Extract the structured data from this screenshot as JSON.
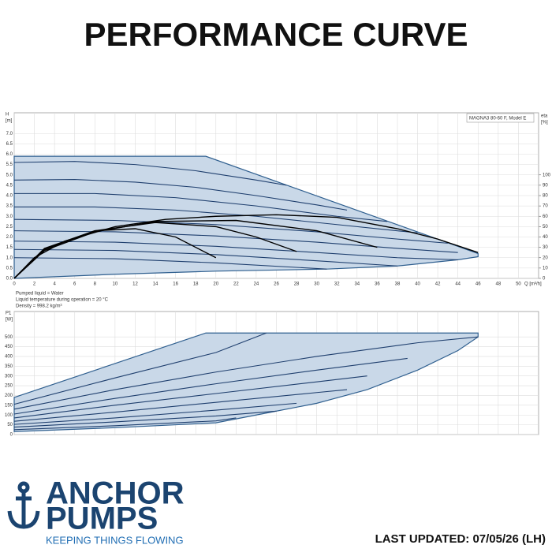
{
  "title": "PERFORMANCE CURVE",
  "chart_data": [
    {
      "type": "line",
      "model": "MAGNA3 80-60 F, Model E",
      "y_label": "H",
      "y_unit": "[m]",
      "y2_label": "eta",
      "y2_unit": "[%]",
      "x_label": "Q [m³/h]",
      "notes": [
        "Pumped liquid = Water",
        "Liquid temperature during operation = 20 °C",
        "Density = 998.2 kg/m³"
      ],
      "xlim": [
        0,
        52
      ],
      "ylim": [
        0,
        8
      ],
      "y2lim": [
        0,
        160
      ],
      "grid": true,
      "xticks": [
        0,
        2,
        4,
        6,
        8,
        10,
        12,
        14,
        16,
        18,
        20,
        22,
        24,
        26,
        28,
        30,
        32,
        34,
        36,
        38,
        40,
        42,
        44,
        46,
        48,
        50
      ],
      "yticks": [
        {
          "value": 0,
          "label": "0.0"
        },
        0.5,
        {
          "value": 1,
          "label": "1.0"
        },
        1.5,
        {
          "value": 2,
          "label": "2.0"
        },
        2.5,
        {
          "value": 3,
          "label": "3.0"
        },
        3.5,
        {
          "value": 4,
          "label": "4.0"
        },
        4.5,
        {
          "value": 5,
          "label": "5.0"
        },
        5.5,
        {
          "value": 6,
          "label": "6.0"
        },
        6.5,
        {
          "value": 7,
          "label": "7.0"
        }
      ],
      "y2ticks": [
        0,
        10,
        20,
        30,
        40,
        50,
        60,
        70,
        80,
        90,
        100
      ],
      "area": {
        "color": "#2f5f8f",
        "fill": "#c9d8e8",
        "x": [
          0,
          19,
          46,
          46,
          44,
          38,
          31,
          20,
          10,
          0
        ],
        "values": [
          5.9,
          5.9,
          1.2,
          1.05,
          0.9,
          0.6,
          0.45,
          0.35,
          0.2,
          0
        ]
      },
      "series": [
        {
          "color": "#1f3f6e",
          "x": [
            0,
            6,
            12,
            18,
            24,
            27
          ],
          "values": [
            5.6,
            5.65,
            5.5,
            5.2,
            4.75,
            4.5
          ]
        },
        {
          "color": "#1f3f6e",
          "x": [
            0,
            6,
            12,
            18,
            24,
            30,
            33
          ],
          "values": [
            4.75,
            4.78,
            4.65,
            4.4,
            4.0,
            3.55,
            3.3
          ]
        },
        {
          "color": "#1f3f6e",
          "x": [
            0,
            8,
            16,
            24,
            32,
            37
          ],
          "values": [
            4.1,
            4.1,
            3.9,
            3.5,
            3.0,
            2.75
          ]
        },
        {
          "color": "#1f3f6e",
          "x": [
            0,
            8,
            16,
            24,
            32,
            40
          ],
          "values": [
            3.45,
            3.45,
            3.3,
            3.0,
            2.6,
            2.2
          ]
        },
        {
          "color": "#1f3f6e",
          "x": [
            0,
            10,
            20,
            30,
            38,
            43
          ],
          "values": [
            2.85,
            2.8,
            2.6,
            2.25,
            1.9,
            1.7
          ]
        },
        {
          "color": "#1f3f6e",
          "x": [
            0,
            10,
            20,
            30,
            38,
            44
          ],
          "values": [
            2.3,
            2.25,
            2.05,
            1.75,
            1.45,
            1.25
          ]
        },
        {
          "color": "#1f3f6e",
          "x": [
            0,
            10,
            20,
            30,
            38,
            44
          ],
          "values": [
            1.8,
            1.75,
            1.55,
            1.25,
            1.0,
            0.9
          ]
        },
        {
          "color": "#1f3f6e",
          "x": [
            0,
            10,
            20,
            30,
            38
          ],
          "values": [
            1.4,
            1.35,
            1.15,
            0.85,
            0.6
          ]
        },
        {
          "color": "#1f3f6e",
          "x": [
            0,
            10,
            20,
            31
          ],
          "values": [
            1.0,
            0.95,
            0.75,
            0.45
          ]
        },
        {
          "color": "#000000",
          "axis": "y2",
          "x": [
            0,
            3,
            8,
            12,
            16,
            20
          ],
          "values": [
            0,
            29,
            46,
            48,
            40,
            20
          ]
        },
        {
          "color": "#000000",
          "axis": "y2",
          "x": [
            0,
            3,
            8,
            14,
            20,
            24,
            28
          ],
          "values": [
            0,
            28,
            46,
            54,
            50,
            40,
            26
          ]
        },
        {
          "color": "#000000",
          "axis": "y2",
          "x": [
            0,
            3,
            8,
            14,
            22,
            30,
            36
          ],
          "values": [
            0,
            27,
            45,
            55,
            56,
            46,
            30
          ]
        },
        {
          "color": "#000000",
          "axis": "y2",
          "x": [
            0,
            2,
            5,
            10,
            15,
            20,
            26,
            32,
            38,
            42,
            46
          ],
          "values": [
            0,
            20,
            36,
            50,
            57,
            60,
            61.5,
            59,
            48,
            38,
            25
          ]
        }
      ]
    },
    {
      "type": "line",
      "y_label": "P1",
      "y_unit": "[W]",
      "xlim": [
        0,
        52
      ],
      "ylim": [
        0,
        630
      ],
      "grid": true,
      "xticks": [
        0,
        2,
        4,
        6,
        8,
        10,
        12,
        14,
        16,
        18,
        20,
        22,
        24,
        26,
        28,
        30,
        32,
        34,
        36,
        38,
        40,
        42,
        44,
        46,
        48,
        50
      ],
      "yticks": [
        0,
        50,
        100,
        150,
        200,
        250,
        300,
        350,
        400,
        450,
        500
      ],
      "area": {
        "color": "#2f5f8f",
        "fill": "#c9d8e8",
        "x": [
          0,
          19,
          46,
          46,
          44,
          40,
          35,
          30,
          25,
          20,
          10,
          0
        ],
        "values": [
          190,
          520,
          520,
          500,
          430,
          330,
          230,
          160,
          110,
          60,
          35,
          15
        ]
      },
      "series": [
        {
          "color": "#1f3f6e",
          "x": [
            0,
            10,
            20,
            25
          ],
          "values": [
            155,
            290,
            420,
            520
          ]
        },
        {
          "color": "#1f3f6e",
          "x": [
            0,
            10,
            20,
            30,
            40,
            46
          ],
          "values": [
            130,
            230,
            320,
            400,
            470,
            500
          ]
        },
        {
          "color": "#1f3f6e",
          "x": [
            0,
            10,
            20,
            30,
            39
          ],
          "values": [
            105,
            185,
            260,
            330,
            390
          ]
        },
        {
          "color": "#1f3f6e",
          "x": [
            0,
            10,
            20,
            30,
            35
          ],
          "values": [
            85,
            150,
            210,
            270,
            300
          ]
        },
        {
          "color": "#1f3f6e",
          "x": [
            0,
            10,
            20,
            30,
            33
          ],
          "values": [
            68,
            115,
            165,
            215,
            230
          ]
        },
        {
          "color": "#1f3f6e",
          "x": [
            0,
            10,
            20,
            28
          ],
          "values": [
            52,
            85,
            125,
            160
          ]
        },
        {
          "color": "#1f3f6e",
          "x": [
            0,
            10,
            20,
            26
          ],
          "values": [
            38,
            65,
            95,
            120
          ]
        },
        {
          "color": "#1f3f6e",
          "x": [
            0,
            10,
            20,
            22
          ],
          "values": [
            25,
            45,
            70,
            85
          ]
        }
      ]
    }
  ],
  "logo": {
    "line1": "ANCHOR",
    "line2": "PUMPS",
    "tagline": "KEEPING THINGS FLOWING"
  },
  "updated": "LAST UPDATED: 07/05/26 (LH)"
}
